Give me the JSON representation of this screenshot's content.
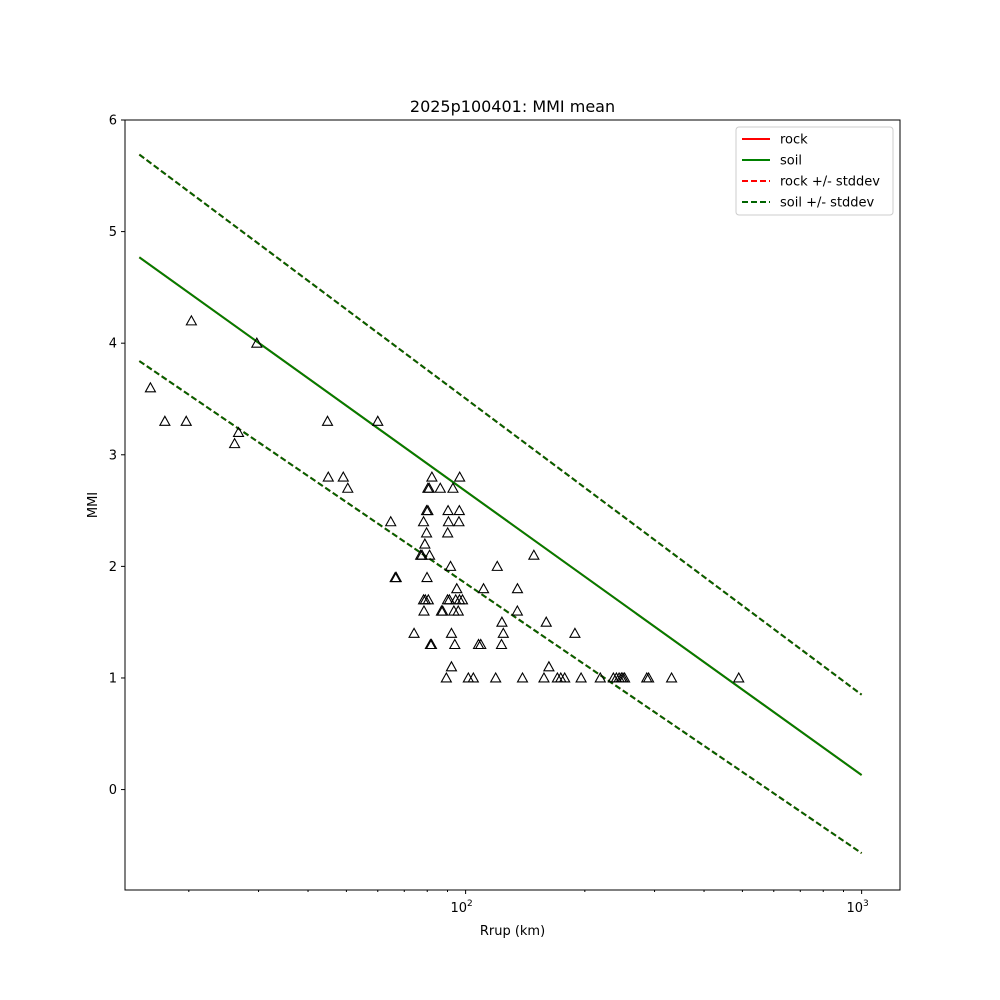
{
  "chart_data": {
    "type": "scatter",
    "title": "2025p100401: MMI mean",
    "xlabel": "Rrup (km)",
    "ylabel": "MMI",
    "xscale": "log",
    "xlim": [
      13.8,
      1250
    ],
    "ylim": [
      -0.9,
      6.0
    ],
    "grid": false,
    "legend_position": "top-right",
    "x_ticks": [
      {
        "value": 100,
        "base": "10",
        "exp": "2"
      },
      {
        "value": 1000,
        "base": "10",
        "exp": "3"
      }
    ],
    "y_ticks": [
      0,
      1,
      2,
      3,
      4,
      5,
      6
    ],
    "lines": [
      {
        "name": "rock",
        "color": "#ff0000",
        "style": "solid",
        "x": [
          15,
          1000
        ],
        "y": [
          4.77,
          0.13
        ]
      },
      {
        "name": "soil",
        "color": "#008000",
        "style": "solid",
        "x": [
          15,
          1000
        ],
        "y": [
          4.77,
          0.13
        ]
      },
      {
        "name": "rock +/- stddev",
        "color": "#ff0000",
        "style": "dashed",
        "x": [
          15,
          1000
        ],
        "y": [
          5.69,
          0.85
        ]
      },
      {
        "name": "",
        "color": "#ff0000",
        "style": "dashed",
        "x": [
          15,
          1000
        ],
        "y": [
          3.84,
          -0.57
        ]
      },
      {
        "name": "soil +/- stddev",
        "color": "#006400",
        "style": "dashed",
        "x": [
          15,
          1000
        ],
        "y": [
          5.69,
          0.85
        ]
      },
      {
        "name": "",
        "color": "#006400",
        "style": "dashed",
        "x": [
          15,
          1000
        ],
        "y": [
          3.84,
          -0.57
        ]
      }
    ],
    "legend": [
      {
        "label": "rock",
        "color": "#ff0000",
        "style": "solid"
      },
      {
        "label": "soil",
        "color": "#008000",
        "style": "solid"
      },
      {
        "label": "rock +/- stddev",
        "color": "#ff0000",
        "style": "dashed"
      },
      {
        "label": "soil +/- stddev",
        "color": "#006400",
        "style": "dashed"
      }
    ],
    "points": [
      [
        16.0,
        3.6
      ],
      [
        17.4,
        3.3
      ],
      [
        19.7,
        3.3
      ],
      [
        20.3,
        4.2
      ],
      [
        26.1,
        3.1
      ],
      [
        26.7,
        3.2
      ],
      [
        29.7,
        4.0
      ],
      [
        44.8,
        3.3
      ],
      [
        45.0,
        2.8
      ],
      [
        49.1,
        2.8
      ],
      [
        50.4,
        2.7
      ],
      [
        60.0,
        3.3
      ],
      [
        64.7,
        2.4
      ],
      [
        66.4,
        1.9
      ],
      [
        66.8,
        1.9
      ],
      [
        74.1,
        1.4
      ],
      [
        77.0,
        2.1
      ],
      [
        77.6,
        2.1
      ],
      [
        78.3,
        1.7
      ],
      [
        78.3,
        2.4
      ],
      [
        78.5,
        1.6
      ],
      [
        78.9,
        2.2
      ],
      [
        79.1,
        1.7
      ],
      [
        79.7,
        2.5
      ],
      [
        79.7,
        2.3
      ],
      [
        79.9,
        1.9
      ],
      [
        80.3,
        2.5
      ],
      [
        80.3,
        2.7
      ],
      [
        80.5,
        1.7
      ],
      [
        80.9,
        2.7
      ],
      [
        81.1,
        2.1
      ],
      [
        81.5,
        1.3
      ],
      [
        82.0,
        1.3
      ],
      [
        82.2,
        2.8
      ],
      [
        86.3,
        2.7
      ],
      [
        86.9,
        1.6
      ],
      [
        87.5,
        1.6
      ],
      [
        89.4,
        1.0
      ],
      [
        90.0,
        1.7
      ],
      [
        90.1,
        2.3
      ],
      [
        90.3,
        2.5
      ],
      [
        90.5,
        2.4
      ],
      [
        91.0,
        1.7
      ],
      [
        91.6,
        2.0
      ],
      [
        92.1,
        1.4
      ],
      [
        92.1,
        1.1
      ],
      [
        92.9,
        2.7
      ],
      [
        93.4,
        1.6
      ],
      [
        93.9,
        1.3
      ],
      [
        94.4,
        1.7
      ],
      [
        95.0,
        1.8
      ],
      [
        95.8,
        1.6
      ],
      [
        96.2,
        2.4
      ],
      [
        96.4,
        2.5
      ],
      [
        96.5,
        1.7
      ],
      [
        96.6,
        2.8
      ],
      [
        98.2,
        1.7
      ],
      [
        101.6,
        1.0
      ],
      [
        104.6,
        1.0
      ],
      [
        107.8,
        1.3
      ],
      [
        109.2,
        1.3
      ],
      [
        111.0,
        1.8
      ],
      [
        119.1,
        1.0
      ],
      [
        120.2,
        2.0
      ],
      [
        123.2,
        1.3
      ],
      [
        123.5,
        1.5
      ],
      [
        124.5,
        1.4
      ],
      [
        135.1,
        1.6
      ],
      [
        135.2,
        1.8
      ],
      [
        139.2,
        1.0
      ],
      [
        148.7,
        2.1
      ],
      [
        157.7,
        1.0
      ],
      [
        159.8,
        1.5
      ],
      [
        162.3,
        1.1
      ],
      [
        170.5,
        1.0
      ],
      [
        173.9,
        1.0
      ],
      [
        177.9,
        1.0
      ],
      [
        188.8,
        1.4
      ],
      [
        195.7,
        1.0
      ],
      [
        218.8,
        1.0
      ],
      [
        236.1,
        1.0
      ],
      [
        240.3,
        1.0
      ],
      [
        244.1,
        1.0
      ],
      [
        247.3,
        1.0
      ],
      [
        249.6,
        1.0
      ],
      [
        252.0,
        1.0
      ],
      [
        286.7,
        1.0
      ],
      [
        289.8,
        1.0
      ],
      [
        331.2,
        1.0
      ],
      [
        489.4,
        1.0
      ]
    ]
  }
}
